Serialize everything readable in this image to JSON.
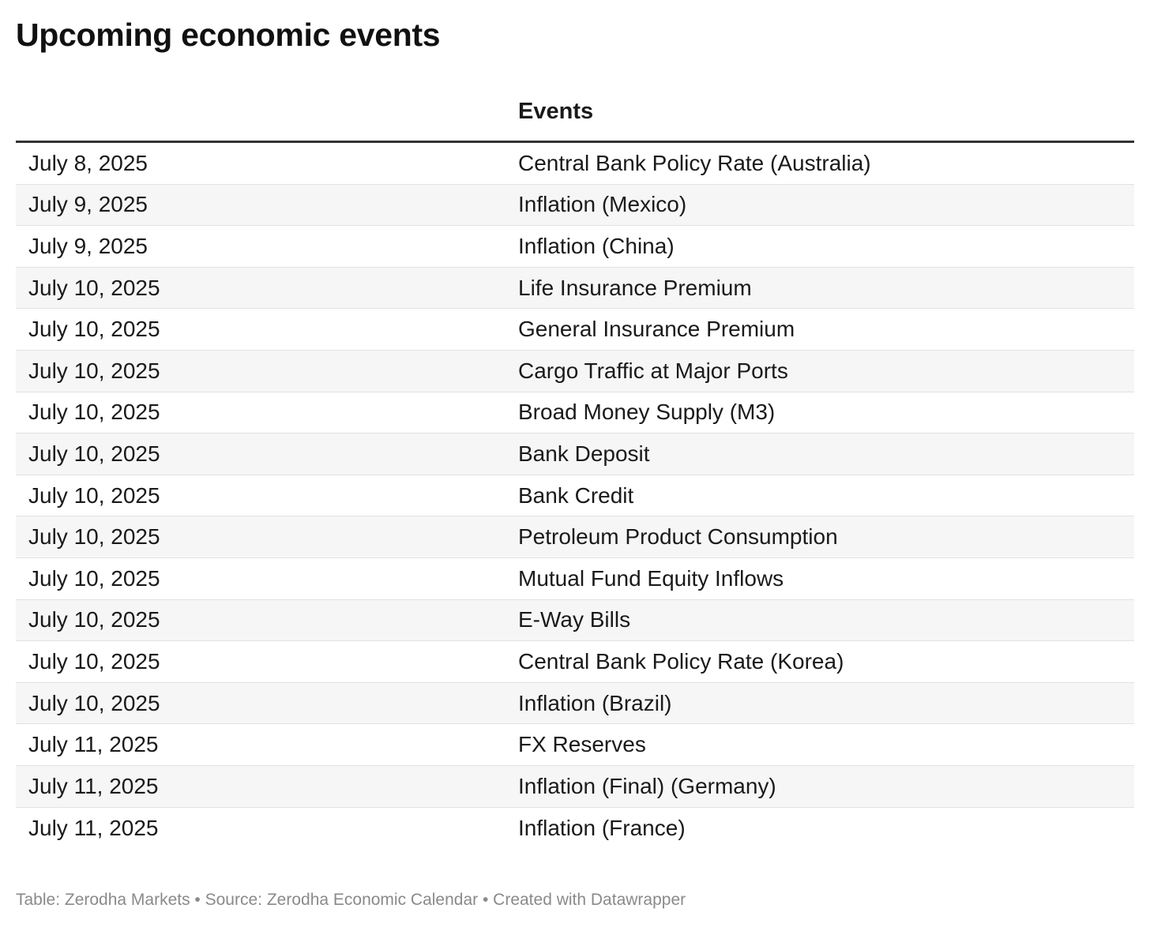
{
  "title": "Upcoming economic events",
  "chart_data": {
    "type": "table",
    "title": "Upcoming economic events",
    "columns": [
      "",
      "Events"
    ],
    "rows": [
      {
        "date": "July 8, 2025",
        "event": "Central Bank Policy Rate (Australia)"
      },
      {
        "date": "July 9, 2025",
        "event": "Inflation (Mexico)"
      },
      {
        "date": "July 9, 2025",
        "event": "Inflation (China)"
      },
      {
        "date": "July 10, 2025",
        "event": "Life Insurance Premium"
      },
      {
        "date": "July 10, 2025",
        "event": "General Insurance Premium"
      },
      {
        "date": "July 10, 2025",
        "event": "Cargo Traffic at Major Ports"
      },
      {
        "date": "July 10, 2025",
        "event": "Broad Money Supply (M3)"
      },
      {
        "date": "July 10, 2025",
        "event": "Bank Deposit"
      },
      {
        "date": "July 10, 2025",
        "event": "Bank Credit"
      },
      {
        "date": "July 10, 2025",
        "event": "Petroleum Product Consumption"
      },
      {
        "date": "July 10, 2025",
        "event": "Mutual Fund Equity Inflows"
      },
      {
        "date": "July 10, 2025",
        "event": "E-Way Bills"
      },
      {
        "date": "July 10, 2025",
        "event": "Central Bank Policy Rate (Korea)"
      },
      {
        "date": "July 10, 2025",
        "event": "Inflation (Brazil)"
      },
      {
        "date": "July 11, 2025",
        "event": "FX Reserves"
      },
      {
        "date": "July 11, 2025",
        "event": "Inflation (Final) (Germany)"
      },
      {
        "date": "July 11, 2025",
        "event": "Inflation (France)"
      }
    ]
  },
  "footer": "Table: Zerodha Markets • Source: Zerodha Economic Calendar • Created with Datawrapper",
  "colors": {
    "text": "#1a1a1a",
    "header_rule": "#333333",
    "row_divider": "#e2e2e2",
    "zebra_fill": "#f6f6f6",
    "footer_text": "#8a8a8a"
  }
}
